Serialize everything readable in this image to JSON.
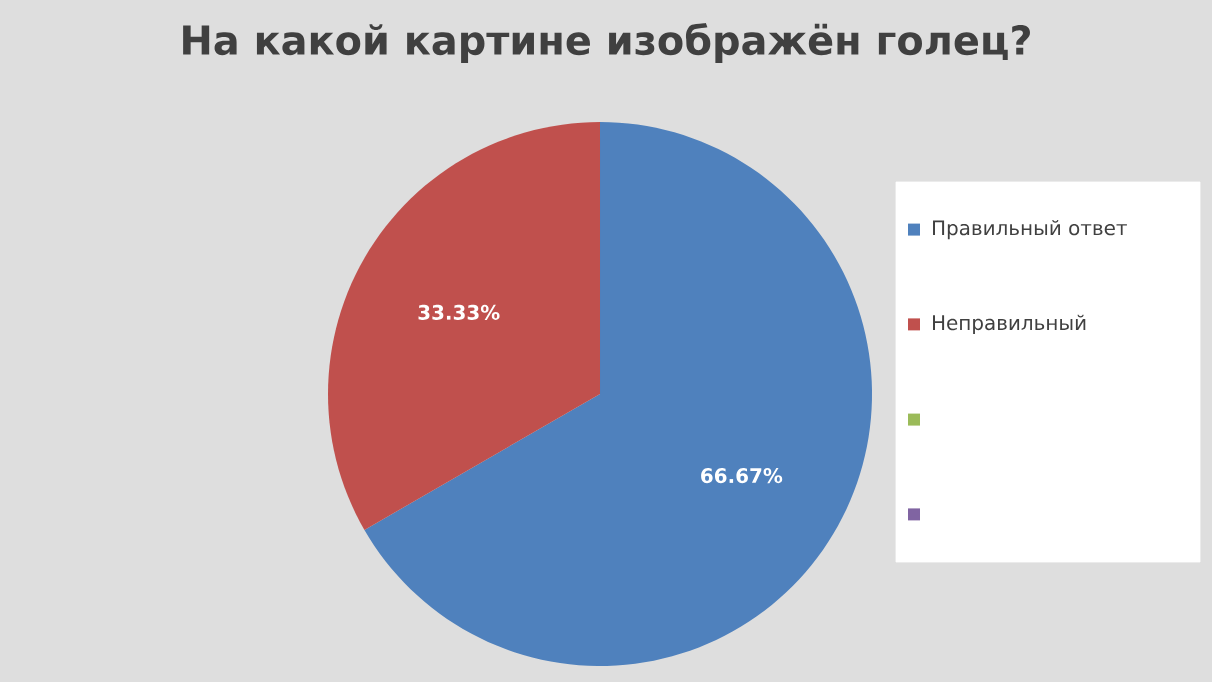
{
  "chart_data": {
    "type": "pie",
    "title": "На какой картине изображён голец?",
    "categories": [
      "Правильный ответ",
      "Неправильный",
      null,
      null
    ],
    "values": [
      66.67,
      33.33,
      0,
      0
    ],
    "colors": [
      "#4f81bd",
      "#c0504d",
      "#9bbb59",
      "#8064a2"
    ],
    "value_labels": [
      "66.67%",
      "33.33%",
      null,
      null
    ],
    "legend": "right"
  }
}
